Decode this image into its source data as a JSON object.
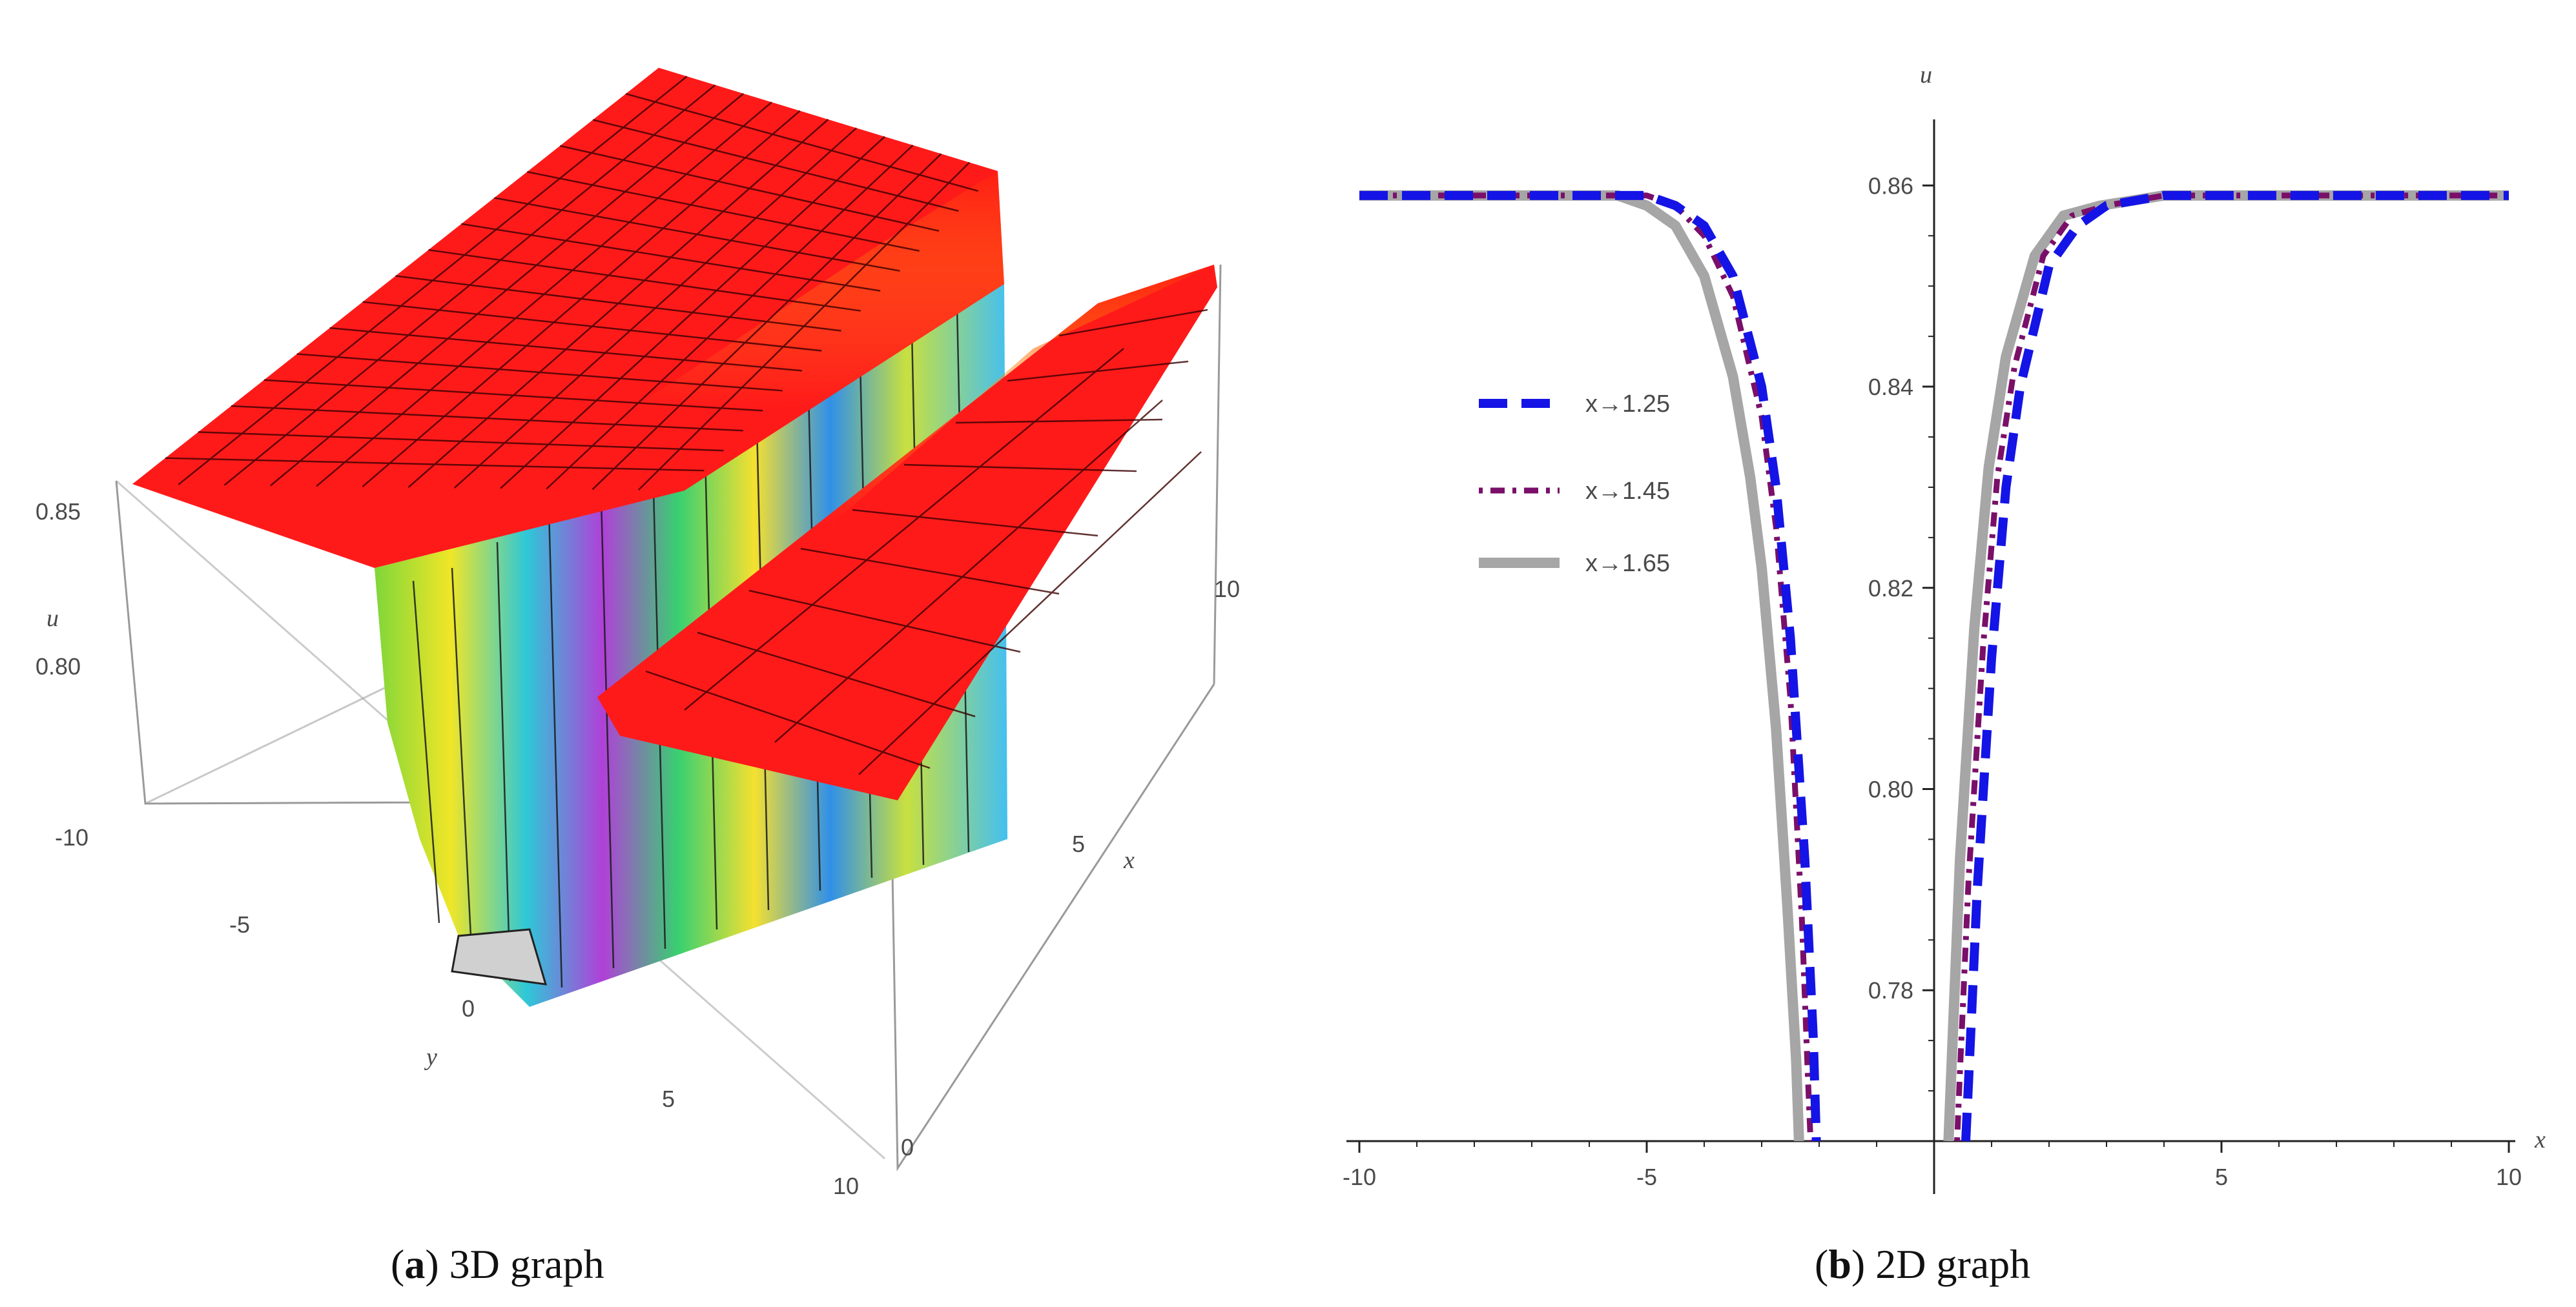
{
  "captions": {
    "a": {
      "letter": "a",
      "text": "3D graph"
    },
    "b": {
      "letter": "b",
      "text": "2D graph"
    }
  },
  "colors": {
    "surface_top": "#ff1a1a",
    "series_1": "#1414e6",
    "series_2": "#7a0f6a",
    "series_3": "#a6a6a6"
  },
  "chart_data": [
    {
      "type": "surface",
      "title": "",
      "axis_labels": {
        "z": "u",
        "y": "y",
        "x": "x"
      },
      "z_ticks": [
        "0.85",
        "0.80"
      ],
      "y_ticks": [
        "-10",
        "-5",
        "0",
        "5",
        "10"
      ],
      "x_ticks": [
        "0",
        "5",
        "10"
      ],
      "xlim": [
        0,
        10
      ],
      "ylim": [
        -10,
        10
      ],
      "zlim": [
        0.76,
        0.86
      ],
      "surface": {
        "plateau_u": 0.859,
        "min_u": 0.77,
        "trough_center_y": -1.0
      }
    },
    {
      "type": "line",
      "title": "",
      "xlabel": "x",
      "ylabel": "u",
      "xlim": [
        -10,
        10
      ],
      "ylim": [
        0.765,
        0.864
      ],
      "x_ticks": [
        -10,
        -5,
        5,
        10
      ],
      "y_ticks": [
        0.78,
        0.8,
        0.82,
        0.84,
        0.86
      ],
      "series": [
        {
          "name": "x→1.25",
          "style": "dashed",
          "x": [
            -10,
            -5,
            -4.5,
            -4,
            -3.5,
            -3,
            -2.75,
            -2.5,
            -2.25,
            -2.1,
            -2.05,
            0.55,
            0.6,
            0.75,
            1.0,
            1.25,
            1.5,
            2.0,
            2.5,
            3.0,
            4.0,
            10
          ],
          "y": [
            0.859,
            0.859,
            0.858,
            0.856,
            0.851,
            0.84,
            0.83,
            0.815,
            0.793,
            0.775,
            0.765,
            0.765,
            0.771,
            0.79,
            0.813,
            0.83,
            0.84,
            0.852,
            0.856,
            0.858,
            0.859,
            0.859
          ]
        },
        {
          "name": "x→1.45",
          "style": "dashdot",
          "x": [
            -10,
            -5,
            -4.5,
            -4,
            -3.5,
            -3,
            -2.75,
            -2.5,
            -2.3,
            -2.2,
            -2.15,
            0.4,
            0.45,
            0.6,
            0.85,
            1.1,
            1.4,
            1.9,
            2.4,
            3.0,
            4.0,
            10
          ],
          "y": [
            0.859,
            0.859,
            0.858,
            0.855,
            0.849,
            0.837,
            0.826,
            0.809,
            0.787,
            0.772,
            0.765,
            0.765,
            0.772,
            0.791,
            0.814,
            0.831,
            0.842,
            0.853,
            0.857,
            0.858,
            0.859,
            0.859
          ]
        },
        {
          "name": "x→1.65",
          "style": "solid",
          "x": [
            -10,
            -5.5,
            -5,
            -4.5,
            -4,
            -3.5,
            -3.2,
            -3,
            -2.75,
            -2.55,
            -2.4,
            -2.35,
            0.25,
            0.3,
            0.45,
            0.7,
            0.95,
            1.25,
            1.75,
            2.25,
            2.9,
            4.0,
            10
          ],
          "y": [
            0.859,
            0.859,
            0.858,
            0.856,
            0.851,
            0.841,
            0.831,
            0.822,
            0.806,
            0.788,
            0.773,
            0.765,
            0.765,
            0.772,
            0.793,
            0.816,
            0.832,
            0.843,
            0.853,
            0.857,
            0.858,
            0.859,
            0.859
          ]
        }
      ]
    }
  ]
}
